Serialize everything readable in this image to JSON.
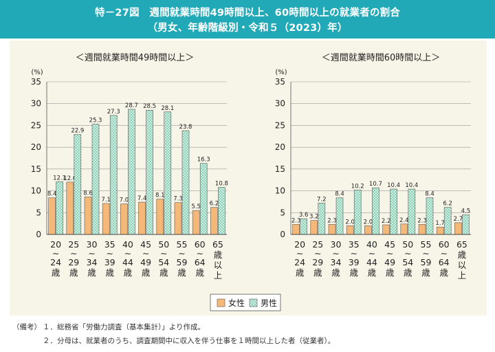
{
  "header": {
    "line1": "特－27図　週間就業時間49時間以上、60時間以上の就業者の割合",
    "line2": "（男女、年齢階級別・令和５（2023）年）"
  },
  "colors": {
    "female": "#f4b878",
    "male": "#cfeee4",
    "male_check": "#8fd1b7",
    "header": "#22a9b8",
    "panel": "#f7f4e8"
  },
  "legend": {
    "female": "女性",
    "male": "男性"
  },
  "notes": {
    "label": "（備考）",
    "n1": "１．総務省「労働力調査（基本集計）」より作成。",
    "n2": "２．分母は、就業者のうち、調査期間中に収入を伴う仕事を１時間以上した者（従業者）。"
  },
  "chart_data": [
    {
      "type": "bar",
      "title": "＜週間就業時間49時間以上＞",
      "ylabel": "(%)",
      "ylim": [
        0,
        35
      ],
      "yticks": [
        "0",
        "5",
        "10",
        "15",
        "20",
        "25",
        "30",
        "35"
      ],
      "categories": [
        "20～24歳",
        "25～29歳",
        "30～34歳",
        "35～39歳",
        "40～44歳",
        "45～49歳",
        "50～54歳",
        "55～59歳",
        "60～64歳",
        "65歳以上"
      ],
      "series": [
        {
          "name": "女性",
          "values": [
            8.4,
            12.0,
            8.6,
            7.1,
            7.0,
            7.4,
            8.1,
            7.3,
            5.5,
            6.2
          ],
          "labels": [
            "8.4",
            "12.0",
            "8.6",
            "7.1",
            "7.0",
            "7.4",
            "8.1",
            "7.3",
            "5.5",
            "6.2"
          ]
        },
        {
          "name": "男性",
          "values": [
            12.1,
            22.9,
            25.3,
            27.3,
            28.7,
            28.5,
            28.1,
            23.8,
            16.3,
            10.8
          ],
          "labels": [
            "12.1",
            "22.9",
            "25.3",
            "27.3",
            "28.7",
            "28.5",
            "28.1",
            "23.8",
            "16.3",
            "10.8"
          ]
        }
      ]
    },
    {
      "type": "bar",
      "title": "＜週間就業時間60時間以上＞",
      "ylabel": "(%)",
      "ylim": [
        0,
        35
      ],
      "yticks": [
        "0",
        "5",
        "10",
        "15",
        "20",
        "25",
        "30",
        "35"
      ],
      "categories": [
        "20～24歳",
        "25～29歳",
        "30～34歳",
        "35～39歳",
        "40～44歳",
        "45～49歳",
        "50～54歳",
        "55～59歳",
        "60～64歳",
        "65歳以上"
      ],
      "series": [
        {
          "name": "女性",
          "values": [
            2.3,
            3.2,
            2.3,
            2.0,
            2.0,
            2.2,
            2.4,
            2.3,
            1.7,
            2.7
          ],
          "labels": [
            "2.3",
            "3.2",
            "2.3",
            "2.0",
            "2.0",
            "2.2",
            "2.4",
            "2.3",
            "1.7",
            "2.7"
          ]
        },
        {
          "name": "男性",
          "values": [
            3.6,
            7.2,
            8.4,
            10.2,
            10.7,
            10.4,
            10.4,
            8.4,
            6.2,
            4.5
          ],
          "labels": [
            "3.6",
            "7.2",
            "8.4",
            "10.2",
            "10.7",
            "10.4",
            "10.4",
            "8.4",
            "6.2",
            "4.5"
          ]
        }
      ]
    }
  ]
}
